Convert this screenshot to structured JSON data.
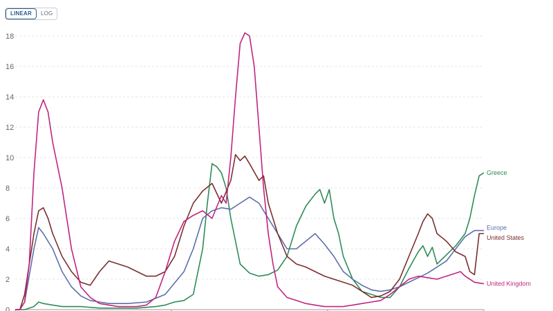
{
  "scale_toggle": {
    "options": [
      {
        "label": "LINEAR",
        "active": true
      },
      {
        "label": "LOG",
        "active": false
      }
    ]
  },
  "chart_data": {
    "type": "line",
    "title": "",
    "xlabel": "",
    "ylabel": "",
    "ylim": [
      0,
      19
    ],
    "yticks": [
      0,
      2,
      4,
      6,
      8,
      10,
      12,
      14,
      16,
      18
    ],
    "grid": "horizontal-dashed",
    "x_is_index": true,
    "x_range": [
      0,
      100
    ],
    "series": [
      {
        "name": "Greece",
        "color": "#2e8b57",
        "x": [
          0,
          2,
          4,
          5,
          6,
          8,
          10,
          14,
          18,
          22,
          26,
          30,
          32,
          34,
          36,
          38,
          40,
          41,
          42,
          43,
          44,
          45,
          46,
          47,
          48,
          50,
          52,
          54,
          56,
          58,
          60,
          62,
          64,
          65,
          66,
          67,
          68,
          69,
          70,
          72,
          74,
          76,
          78,
          80,
          82,
          84,
          86,
          87,
          88,
          89,
          90,
          92,
          94,
          96,
          97,
          98,
          99,
          100
        ],
        "y": [
          0,
          0,
          0.2,
          0.5,
          0.4,
          0.3,
          0.2,
          0.2,
          0.1,
          0.1,
          0.1,
          0.2,
          0.3,
          0.5,
          0.6,
          1.0,
          4.0,
          7.0,
          9.6,
          9.4,
          9.0,
          8.0,
          6.0,
          4.5,
          3.0,
          2.4,
          2.2,
          2.3,
          2.6,
          3.5,
          5.5,
          6.8,
          7.6,
          7.9,
          7.0,
          7.9,
          6.0,
          5.0,
          3.5,
          2.0,
          1.2,
          1.0,
          0.8,
          0.8,
          1.5,
          2.7,
          3.8,
          4.2,
          3.5,
          4.1,
          3.0,
          3.6,
          4.2,
          5.0,
          6.0,
          7.5,
          8.8,
          9.0
        ]
      },
      {
        "name": "Europe",
        "color": "#5b6fa8",
        "x": [
          0,
          1,
          2,
          4,
          5,
          6,
          8,
          10,
          12,
          14,
          16,
          18,
          20,
          24,
          28,
          32,
          36,
          38,
          40,
          42,
          44,
          46,
          48,
          50,
          52,
          54,
          56,
          58,
          60,
          62,
          64,
          66,
          68,
          70,
          72,
          74,
          76,
          78,
          80,
          82,
          84,
          86,
          88,
          90,
          92,
          94,
          96,
          98,
          100
        ],
        "y": [
          0,
          0,
          0.5,
          4.0,
          5.4,
          5.0,
          4.0,
          2.5,
          1.5,
          0.9,
          0.6,
          0.5,
          0.4,
          0.4,
          0.5,
          1.0,
          2.5,
          4.0,
          6.0,
          6.5,
          6.7,
          6.6,
          7.0,
          7.4,
          7.0,
          6.0,
          5.0,
          4.0,
          4.0,
          4.5,
          5.0,
          4.3,
          3.5,
          2.5,
          2.0,
          1.6,
          1.3,
          1.2,
          1.3,
          1.5,
          1.8,
          2.1,
          2.4,
          2.8,
          3.2,
          4.0,
          4.8,
          5.2,
          5.2
        ]
      },
      {
        "name": "United States",
        "color": "#7a2e2e",
        "x": [
          0,
          1,
          2,
          4,
          5,
          6,
          7,
          8,
          10,
          12,
          14,
          16,
          18,
          20,
          22,
          24,
          26,
          28,
          30,
          32,
          34,
          36,
          38,
          40,
          42,
          44,
          46,
          47,
          48,
          49,
          50,
          52,
          53,
          54,
          56,
          58,
          60,
          62,
          64,
          66,
          68,
          70,
          72,
          74,
          76,
          78,
          80,
          82,
          84,
          86,
          87,
          88,
          89,
          90,
          92,
          94,
          96,
          97,
          98,
          99,
          100
        ],
        "y": [
          0,
          0,
          1.0,
          5.0,
          6.5,
          6.7,
          6.0,
          5.0,
          3.5,
          2.5,
          1.8,
          1.6,
          2.5,
          3.2,
          3.0,
          2.8,
          2.5,
          2.2,
          2.2,
          2.5,
          3.5,
          5.5,
          7.0,
          7.8,
          8.3,
          7.0,
          8.5,
          10.2,
          9.8,
          10.1,
          9.6,
          8.5,
          8.8,
          7.0,
          5.0,
          3.5,
          3.0,
          2.8,
          2.5,
          2.2,
          2.0,
          1.8,
          1.6,
          1.2,
          0.8,
          0.9,
          1.2,
          2.0,
          3.5,
          5.0,
          5.8,
          6.3,
          6.0,
          5.0,
          4.5,
          3.8,
          3.5,
          2.5,
          2.3,
          5.0,
          5.0
        ]
      },
      {
        "name": "United Kingdom",
        "color": "#c0247f",
        "x": [
          0,
          1,
          2,
          3,
          4,
          5,
          6,
          7,
          8,
          10,
          12,
          14,
          16,
          18,
          20,
          22,
          24,
          26,
          28,
          30,
          32,
          34,
          36,
          38,
          40,
          42,
          44,
          45,
          46,
          47,
          48,
          49,
          50,
          51,
          52,
          53,
          54,
          55,
          56,
          58,
          60,
          62,
          64,
          66,
          68,
          70,
          72,
          74,
          76,
          78,
          80,
          82,
          84,
          86,
          88,
          90,
          92,
          94,
          95,
          96,
          98,
          100
        ],
        "y": [
          0,
          0,
          0.5,
          3.0,
          9.0,
          13.0,
          13.8,
          13.0,
          11.0,
          8.0,
          4.0,
          1.5,
          0.8,
          0.4,
          0.3,
          0.2,
          0.2,
          0.2,
          0.3,
          0.8,
          2.5,
          4.5,
          5.8,
          6.2,
          6.5,
          6.0,
          7.5,
          7.0,
          10.0,
          14.0,
          17.5,
          18.2,
          18.0,
          16.0,
          12.0,
          8.0,
          5.0,
          3.0,
          1.5,
          0.8,
          0.6,
          0.4,
          0.3,
          0.2,
          0.2,
          0.2,
          0.3,
          0.4,
          0.5,
          0.6,
          1.0,
          1.5,
          2.0,
          2.2,
          2.1,
          2.0,
          2.2,
          2.4,
          2.5,
          2.2,
          1.8,
          1.7
        ]
      }
    ]
  }
}
